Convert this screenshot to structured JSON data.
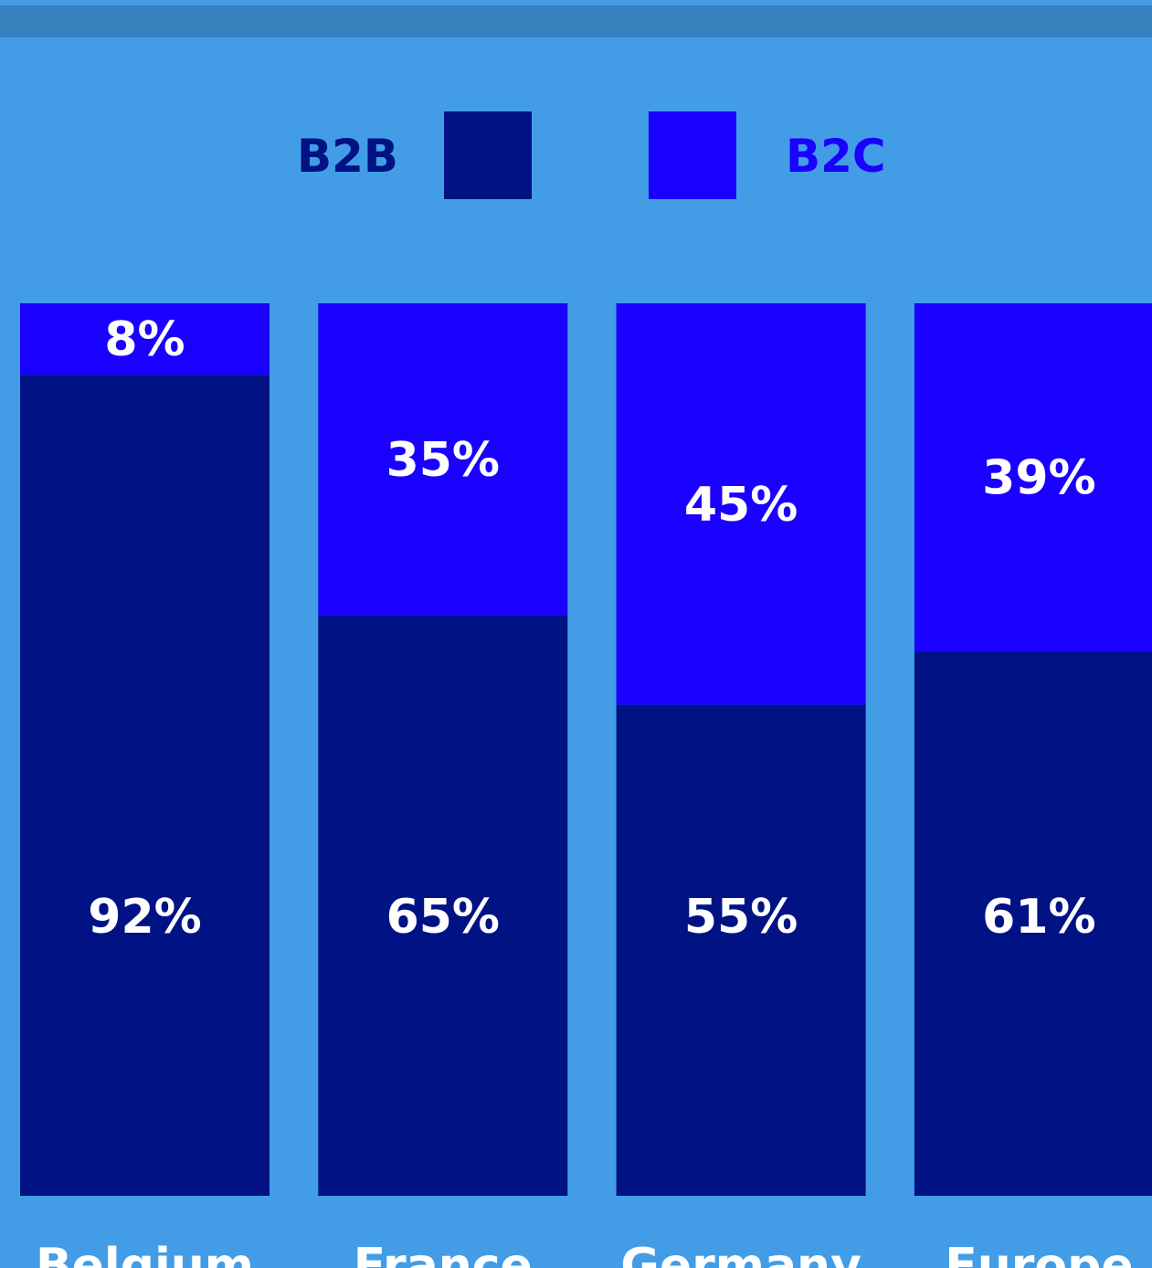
{
  "colors": {
    "background": "#429DE6",
    "top_band": "#3680BE",
    "b2b": "#001284",
    "b2c": "#1A00FF",
    "label_text": "#ffffff"
  },
  "legend": {
    "b2b_label": "B2B",
    "b2c_label": "B2C"
  },
  "chart_data": {
    "type": "bar",
    "stacked": true,
    "categories": [
      "Belgium",
      "France",
      "Germany",
      "Europe"
    ],
    "series": [
      {
        "name": "B2B",
        "values": [
          92,
          65,
          55,
          61
        ],
        "labels": [
          "92%",
          "65%",
          "55%",
          "61%"
        ]
      },
      {
        "name": "B2C",
        "values": [
          8,
          35,
          45,
          39
        ],
        "labels": [
          "8%",
          "35%",
          "45%",
          "39%"
        ]
      }
    ],
    "ylim": [
      0,
      100
    ],
    "grid": false,
    "legend_position": "top-center"
  }
}
